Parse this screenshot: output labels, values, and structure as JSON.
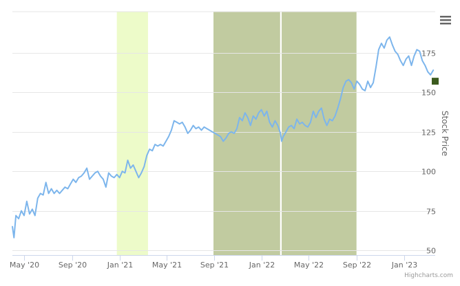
{
  "chart_data": {
    "type": "line",
    "title": "",
    "xlabel": "",
    "ylabel": "Stock Price",
    "x_range": [
      "2020-04-01",
      "2023-03-22"
    ],
    "ylim": [
      47,
      201
    ],
    "y_ticks": [
      50,
      75,
      100,
      125,
      150,
      175
    ],
    "x_ticks": [
      {
        "date": "2020-05-01",
        "label": "May '20"
      },
      {
        "date": "2020-09-01",
        "label": "Sep '20"
      },
      {
        "date": "2021-01-01",
        "label": "Jan '21"
      },
      {
        "date": "2021-05-01",
        "label": "May '21"
      },
      {
        "date": "2021-09-01",
        "label": "Sep '21"
      },
      {
        "date": "2022-01-01",
        "label": "Jan '22"
      },
      {
        "date": "2022-05-01",
        "label": "May '22"
      },
      {
        "date": "2022-09-01",
        "label": "Sep '22"
      },
      {
        "date": "2023-01-01",
        "label": "Jan '23"
      }
    ],
    "grid": "horizontal",
    "legend": "none",
    "bands": [
      {
        "from": "2020-12-25",
        "to": "2021-03-15",
        "color": "#edfbc9"
      },
      {
        "from": "2021-08-30",
        "to": "2022-02-17",
        "color": "#c1cba0"
      },
      {
        "from": "2022-02-21",
        "to": "2022-09-01",
        "color": "#c1cba0"
      }
    ],
    "series": [
      {
        "color": "#7cb5ec",
        "points": [
          [
            "2020-04-01",
            65
          ],
          [
            "2020-04-05",
            58
          ],
          [
            "2020-04-10",
            72
          ],
          [
            "2020-04-17",
            70
          ],
          [
            "2020-04-24",
            75
          ],
          [
            "2020-05-01",
            72
          ],
          [
            "2020-05-08",
            81
          ],
          [
            "2020-05-15",
            73
          ],
          [
            "2020-05-22",
            76
          ],
          [
            "2020-05-29",
            72
          ],
          [
            "2020-06-05",
            83
          ],
          [
            "2020-06-12",
            86
          ],
          [
            "2020-06-19",
            85
          ],
          [
            "2020-06-26",
            93
          ],
          [
            "2020-07-03",
            86
          ],
          [
            "2020-07-10",
            89
          ],
          [
            "2020-07-17",
            86
          ],
          [
            "2020-07-24",
            88
          ],
          [
            "2020-07-31",
            86
          ],
          [
            "2020-08-07",
            88
          ],
          [
            "2020-08-14",
            90
          ],
          [
            "2020-08-21",
            89
          ],
          [
            "2020-08-28",
            92
          ],
          [
            "2020-09-04",
            95
          ],
          [
            "2020-09-11",
            93
          ],
          [
            "2020-09-18",
            96
          ],
          [
            "2020-09-25",
            97
          ],
          [
            "2020-10-02",
            99
          ],
          [
            "2020-10-09",
            102
          ],
          [
            "2020-10-16",
            95
          ],
          [
            "2020-10-23",
            97
          ],
          [
            "2020-10-30",
            99
          ],
          [
            "2020-11-06",
            100
          ],
          [
            "2020-11-13",
            97
          ],
          [
            "2020-11-20",
            95
          ],
          [
            "2020-11-27",
            90
          ],
          [
            "2020-12-04",
            99
          ],
          [
            "2020-12-11",
            97
          ],
          [
            "2020-12-18",
            96
          ],
          [
            "2020-12-25",
            98
          ],
          [
            "2021-01-01",
            96
          ],
          [
            "2021-01-08",
            100
          ],
          [
            "2021-01-15",
            99
          ],
          [
            "2021-01-22",
            107
          ],
          [
            "2021-01-29",
            102
          ],
          [
            "2021-02-05",
            104
          ],
          [
            "2021-02-12",
            100
          ],
          [
            "2021-02-19",
            96
          ],
          [
            "2021-02-26",
            99
          ],
          [
            "2021-03-05",
            103
          ],
          [
            "2021-03-12",
            110
          ],
          [
            "2021-03-19",
            114
          ],
          [
            "2021-03-26",
            113
          ],
          [
            "2021-04-02",
            117
          ],
          [
            "2021-04-09",
            116
          ],
          [
            "2021-04-16",
            117
          ],
          [
            "2021-04-23",
            116
          ],
          [
            "2021-04-30",
            119
          ],
          [
            "2021-05-07",
            122
          ],
          [
            "2021-05-14",
            126
          ],
          [
            "2021-05-21",
            132
          ],
          [
            "2021-05-28",
            131
          ],
          [
            "2021-06-04",
            130
          ],
          [
            "2021-06-11",
            131
          ],
          [
            "2021-06-18",
            128
          ],
          [
            "2021-06-25",
            124
          ],
          [
            "2021-07-02",
            126
          ],
          [
            "2021-07-09",
            129
          ],
          [
            "2021-07-16",
            127
          ],
          [
            "2021-07-23",
            128
          ],
          [
            "2021-07-30",
            126
          ],
          [
            "2021-08-06",
            128
          ],
          [
            "2021-08-13",
            127
          ],
          [
            "2021-08-20",
            126
          ],
          [
            "2021-08-27",
            125
          ],
          [
            "2021-09-03",
            124
          ],
          [
            "2021-09-10",
            123
          ],
          [
            "2021-09-17",
            122
          ],
          [
            "2021-09-24",
            119
          ],
          [
            "2021-10-01",
            121
          ],
          [
            "2021-10-08",
            124
          ],
          [
            "2021-10-15",
            125
          ],
          [
            "2021-10-22",
            124
          ],
          [
            "2021-10-29",
            127
          ],
          [
            "2021-11-05",
            134
          ],
          [
            "2021-11-12",
            132
          ],
          [
            "2021-11-19",
            137
          ],
          [
            "2021-11-26",
            134
          ],
          [
            "2021-12-03",
            129
          ],
          [
            "2021-12-10",
            135
          ],
          [
            "2021-12-17",
            133
          ],
          [
            "2021-12-24",
            137
          ],
          [
            "2021-12-31",
            139
          ],
          [
            "2022-01-07",
            135
          ],
          [
            "2022-01-14",
            138
          ],
          [
            "2022-01-21",
            131
          ],
          [
            "2022-01-28",
            128
          ],
          [
            "2022-02-04",
            132
          ],
          [
            "2022-02-11",
            129
          ],
          [
            "2022-02-18",
            124
          ],
          [
            "2022-02-21",
            119
          ],
          [
            "2022-02-25",
            122
          ],
          [
            "2022-03-04",
            125
          ],
          [
            "2022-03-11",
            128
          ],
          [
            "2022-03-18",
            129
          ],
          [
            "2022-03-25",
            127
          ],
          [
            "2022-04-01",
            133
          ],
          [
            "2022-04-08",
            130
          ],
          [
            "2022-04-15",
            131
          ],
          [
            "2022-04-22",
            129
          ],
          [
            "2022-04-29",
            128
          ],
          [
            "2022-05-06",
            131
          ],
          [
            "2022-05-13",
            138
          ],
          [
            "2022-05-20",
            134
          ],
          [
            "2022-05-27",
            138
          ],
          [
            "2022-06-03",
            140
          ],
          [
            "2022-06-10",
            133
          ],
          [
            "2022-06-17",
            129
          ],
          [
            "2022-06-24",
            133
          ],
          [
            "2022-07-01",
            132
          ],
          [
            "2022-07-08",
            135
          ],
          [
            "2022-07-15",
            140
          ],
          [
            "2022-07-22",
            146
          ],
          [
            "2022-07-29",
            153
          ],
          [
            "2022-08-05",
            157
          ],
          [
            "2022-08-12",
            158
          ],
          [
            "2022-08-19",
            156
          ],
          [
            "2022-08-26",
            152
          ],
          [
            "2022-09-02",
            157
          ],
          [
            "2022-09-09",
            155
          ],
          [
            "2022-09-16",
            152
          ],
          [
            "2022-09-23",
            151
          ],
          [
            "2022-09-30",
            157
          ],
          [
            "2022-10-07",
            153
          ],
          [
            "2022-10-14",
            156
          ],
          [
            "2022-10-21",
            166
          ],
          [
            "2022-10-28",
            177
          ],
          [
            "2022-11-04",
            181
          ],
          [
            "2022-11-11",
            178
          ],
          [
            "2022-11-18",
            183
          ],
          [
            "2022-11-25",
            185
          ],
          [
            "2022-12-02",
            180
          ],
          [
            "2022-12-09",
            176
          ],
          [
            "2022-12-16",
            174
          ],
          [
            "2022-12-23",
            170
          ],
          [
            "2022-12-30",
            167
          ],
          [
            "2023-01-06",
            171
          ],
          [
            "2023-01-13",
            173
          ],
          [
            "2023-01-20",
            167
          ],
          [
            "2023-01-27",
            173
          ],
          [
            "2023-02-03",
            177
          ],
          [
            "2023-02-10",
            176
          ],
          [
            "2023-02-17",
            170
          ],
          [
            "2023-02-24",
            167
          ],
          [
            "2023-03-03",
            163
          ],
          [
            "2023-03-10",
            161
          ],
          [
            "2023-03-17",
            164
          ]
        ]
      }
    ],
    "last_value_marker": {
      "date": "2023-03-22",
      "value": 157,
      "color": "#3b5a1e"
    }
  },
  "credits": "Highcharts.com",
  "menu": {
    "icon": "hamburger-menu-icon"
  }
}
